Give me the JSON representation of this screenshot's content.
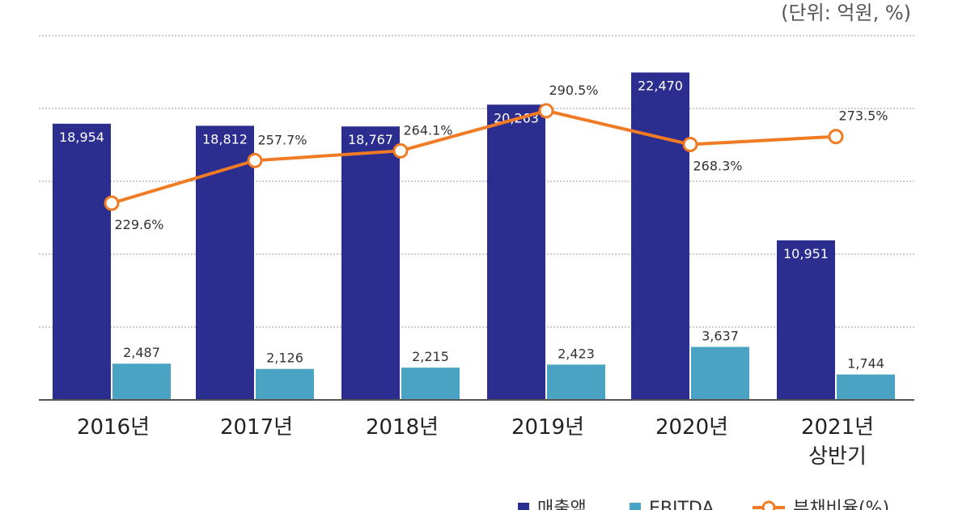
{
  "unit_label": "(단위: 억원, %)",
  "chart_data": {
    "type": "bar",
    "title": "",
    "categories": [
      [
        "2016년"
      ],
      [
        "2017년"
      ],
      [
        "2018년"
      ],
      [
        "2019년"
      ],
      [
        "2020년"
      ],
      [
        "2021년",
        "상반기"
      ]
    ],
    "series": [
      {
        "name": "매출액",
        "kind": "bar",
        "axis": "left",
        "color": "#2b2d8f",
        "values": [
          18954,
          18812,
          18767,
          20263,
          22470,
          10951
        ],
        "labels": [
          "18,954",
          "18,812",
          "18,767",
          "20,263",
          "22,470",
          "10,951"
        ]
      },
      {
        "name": "EBITDA",
        "kind": "bar",
        "axis": "left",
        "color": "#4aa3c3",
        "values": [
          2487,
          2126,
          2215,
          2423,
          3637,
          1744
        ],
        "labels": [
          "2,487",
          "2,126",
          "2,215",
          "2,423",
          "3,637",
          "1,744"
        ]
      },
      {
        "name": "부채비율(%)",
        "kind": "line",
        "axis": "right",
        "color": "#f07b24",
        "values": [
          229.6,
          257.7,
          264.1,
          290.5,
          268.3,
          273.5
        ],
        "labels": [
          "229.6%",
          "257.7%",
          "264.1%",
          "290.5%",
          "268.3%",
          "273.5%"
        ]
      }
    ],
    "ylim": [
      0,
      25000
    ],
    "grid": true,
    "legend": "bottom"
  }
}
